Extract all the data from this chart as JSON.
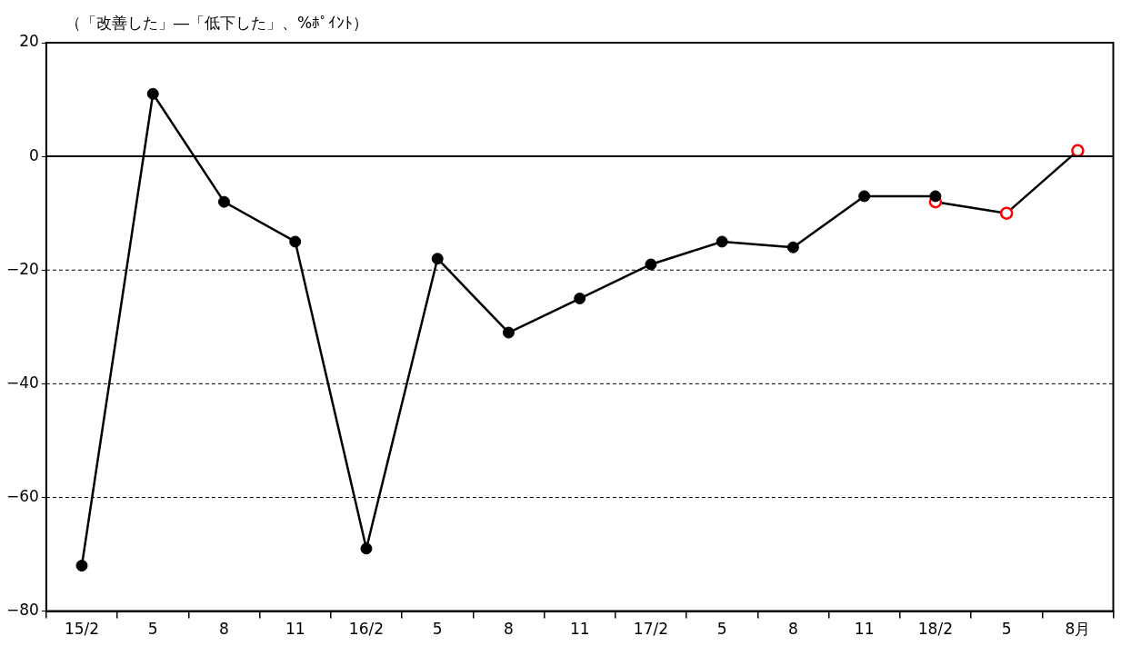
{
  "chart_data": {
    "type": "line",
    "ylabel": "（「改善した」―「低下した」、%ﾎﾟｲﾝﾄ）",
    "categories": [
      "15/2",
      "5",
      "8",
      "11",
      "16/2",
      "5",
      "8",
      "11",
      "17/2",
      "5",
      "8",
      "11",
      "18/2",
      "5",
      "8月"
    ],
    "series": [
      {
        "color": "#000000",
        "marker": "circle",
        "values": [
          -72,
          11,
          -8,
          -15,
          -69,
          -18,
          -31,
          -25,
          -19,
          -15,
          -16,
          -7,
          -7,
          null,
          null
        ]
      },
      {
        "color": "#ff0000",
        "marker": "circle",
        "values": [
          null,
          null,
          null,
          null,
          null,
          null,
          null,
          null,
          null,
          null,
          null,
          null,
          -8,
          -10,
          1
        ]
      }
    ],
    "ylim": [
      -80,
      20
    ],
    "yticks": [
      -80,
      -60,
      -40,
      -20,
      0,
      20
    ],
    "grid": "y",
    "line_style": "solid",
    "legend": false,
    "ref_lines": [
      {
        "axis": "y",
        "value": 0,
        "color": "#000000",
        "line_style": "solid"
      }
    ]
  }
}
